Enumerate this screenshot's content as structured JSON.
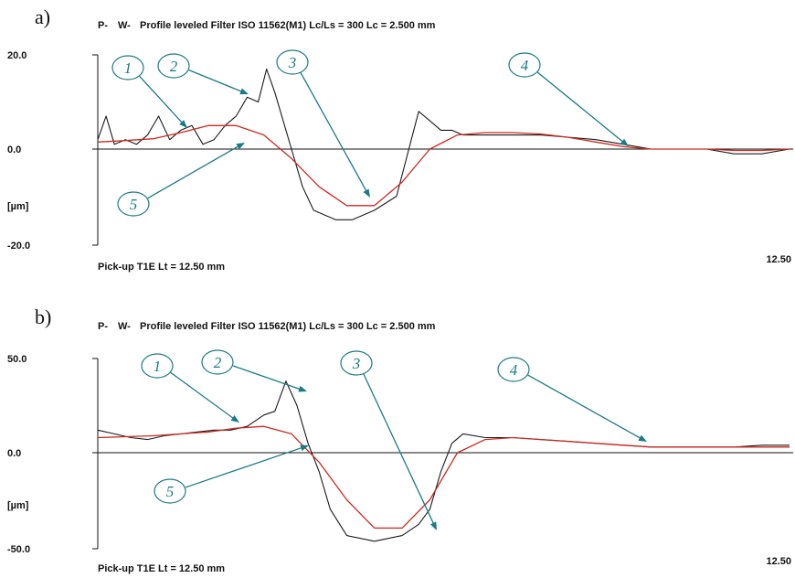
{
  "chart_data": [
    {
      "type": "line",
      "panel_label": "a)",
      "header": {
        "p_tag": "P-",
        "w_tag": "W-",
        "text": "Profile leveled Filter ISO 11562(M1) Lc/Ls = 300 Lc = 2.500 mm"
      },
      "footer_left": "Pick-up T1E   Lt = 12.50  mm",
      "footer_right": "12.50",
      "ylabel": "[µm]",
      "ylim": [
        -20,
        20
      ],
      "yticks": [
        "20.0",
        "0.0",
        "-20.0"
      ],
      "xlim": [
        0,
        12.5
      ],
      "series": [
        {
          "color": "#1a1a1a",
          "x": [
            0,
            0.15,
            0.3,
            0.5,
            0.7,
            0.9,
            1.1,
            1.3,
            1.5,
            1.7,
            1.9,
            2.1,
            2.3,
            2.5,
            2.7,
            2.9,
            3.05,
            3.2,
            3.35,
            3.5,
            3.7,
            3.9,
            4.1,
            4.3,
            4.6,
            5.0,
            5.4,
            5.8,
            6.0,
            6.2,
            6.4,
            6.6,
            6.8,
            7.0,
            7.5,
            8.0,
            8.5,
            9.0,
            9.5,
            10.0,
            10.5,
            11.0,
            11.5,
            12.0,
            12.5
          ],
          "y": [
            2,
            7,
            1,
            2,
            1,
            3,
            7,
            2,
            4,
            5,
            1,
            2,
            5,
            7,
            11,
            10,
            17,
            12,
            6,
            0,
            -8,
            -13,
            -14,
            -15,
            -15,
            -13,
            -10,
            8,
            6,
            4,
            4,
            3,
            3,
            3,
            3,
            3,
            2.5,
            2,
            1,
            0,
            0,
            0,
            -1,
            -1,
            0
          ]
        },
        {
          "color": "#cc2a1f",
          "x": [
            0,
            0.5,
            1.0,
            1.5,
            2.0,
            2.5,
            3.0,
            3.5,
            4.0,
            4.5,
            5.0,
            5.5,
            6.0,
            6.5,
            7.0,
            7.5,
            8.0,
            8.5,
            9.0,
            9.5,
            10.0,
            10.5,
            11.0,
            11.5,
            12.0,
            12.5
          ],
          "y": [
            1.5,
            1.8,
            2.2,
            3.5,
            5,
            5,
            3,
            -2,
            -8,
            -12,
            -12,
            -7,
            0,
            3,
            3.5,
            3.5,
            3.2,
            2.5,
            1.5,
            0.5,
            0,
            0,
            0,
            -0.3,
            -0.3,
            0
          ]
        }
      ],
      "annotations": [
        "1",
        "2",
        "3",
        "4",
        "5"
      ]
    },
    {
      "type": "line",
      "panel_label": "b)",
      "header": {
        "p_tag": "P-",
        "w_tag": "W-",
        "text": "Profile leveled Filter ISO 11562(M1) Lc/Ls = 300 Lc = 2.500 mm"
      },
      "footer_left": "Pick-up T1E   Lt = 12.50  mm",
      "footer_right": "12.50",
      "ylabel": "[µm]",
      "ylim": [
        -50,
        50
      ],
      "yticks": [
        "50.0",
        "0.0",
        "-50.0"
      ],
      "xlim": [
        0,
        12.5
      ],
      "series": [
        {
          "color": "#1a1a1a",
          "x": [
            0,
            0.3,
            0.6,
            0.9,
            1.2,
            1.5,
            1.8,
            2.1,
            2.4,
            2.7,
            3.0,
            3.2,
            3.4,
            3.6,
            3.8,
            4.0,
            4.2,
            4.5,
            5.0,
            5.5,
            5.8,
            6.0,
            6.2,
            6.4,
            6.6,
            7.0,
            7.5,
            8.0,
            8.5,
            9.0,
            9.5,
            10.0,
            10.5,
            11.0,
            11.5,
            12.0,
            12.5
          ],
          "y": [
            12,
            10,
            8,
            7,
            9,
            10,
            11,
            12,
            12,
            14,
            20,
            22,
            38,
            25,
            5,
            -10,
            -30,
            -44,
            -47,
            -44,
            -38,
            -30,
            -10,
            5,
            10,
            8,
            8,
            7,
            6,
            5,
            4,
            3,
            3,
            3,
            3,
            4,
            4
          ]
        },
        {
          "color": "#cc2a1f",
          "x": [
            0,
            0.5,
            1.0,
            1.5,
            2.0,
            2.5,
            3.0,
            3.5,
            4.0,
            4.5,
            5.0,
            5.5,
            6.0,
            6.5,
            7.0,
            7.5,
            8.0,
            8.5,
            9.0,
            9.5,
            10.0,
            10.5,
            11.0,
            11.5,
            12.0,
            12.5
          ],
          "y": [
            8,
            8.5,
            9,
            10,
            11,
            13,
            14,
            10,
            -5,
            -25,
            -40,
            -40,
            -25,
            0,
            7,
            8,
            7,
            6,
            5,
            4,
            3,
            3,
            3,
            3,
            3,
            3
          ]
        }
      ],
      "annotations": [
        "1",
        "2",
        "3",
        "4",
        "5"
      ]
    }
  ]
}
